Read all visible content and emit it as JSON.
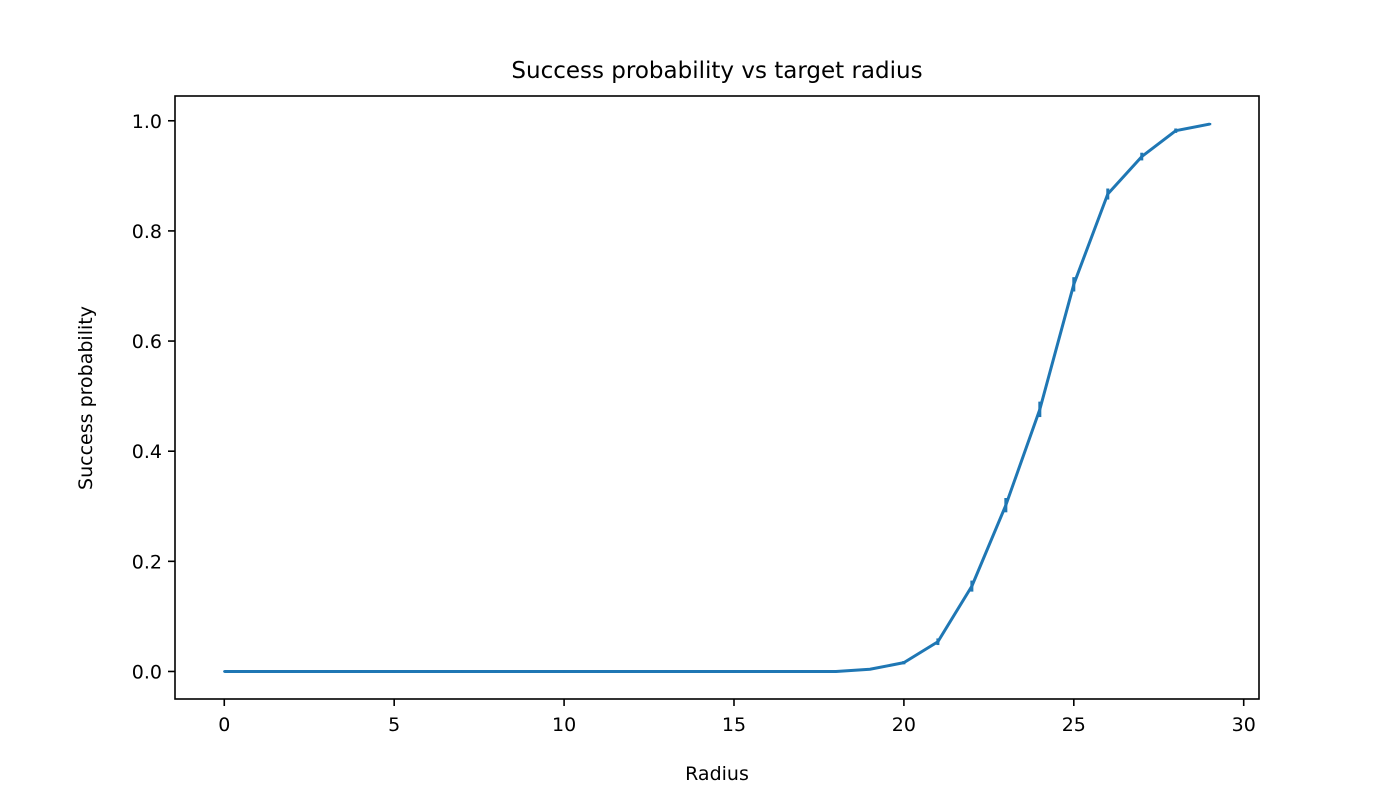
{
  "chart_data": {
    "type": "line",
    "title": "Success probability vs target radius",
    "xlabel": "Radius",
    "ylabel": "Success probability",
    "xlim": [
      -1.45,
      30.45
    ],
    "ylim": [
      -0.05,
      1.045
    ],
    "xticks": [
      0,
      5,
      10,
      15,
      20,
      25,
      30
    ],
    "xtick_labels": [
      "0",
      "5",
      "10",
      "15",
      "20",
      "25",
      "30"
    ],
    "yticks": [
      0.0,
      0.2,
      0.4,
      0.6,
      0.8,
      1.0
    ],
    "ytick_labels": [
      "0.0",
      "0.2",
      "0.4",
      "0.6",
      "0.8",
      "1.0"
    ],
    "grid": false,
    "series": [
      {
        "color": "#1f77b4",
        "x": [
          0,
          1,
          2,
          3,
          4,
          5,
          6,
          7,
          8,
          9,
          10,
          11,
          12,
          13,
          14,
          15,
          16,
          17,
          18,
          19,
          20,
          21,
          22,
          23,
          24,
          25,
          26,
          27,
          28,
          29
        ],
        "y": [
          0,
          0,
          0,
          0,
          0,
          0,
          0,
          0,
          0,
          0,
          0,
          0,
          0,
          0,
          0,
          0,
          0,
          0,
          0,
          0.004,
          0.016,
          0.054,
          0.155,
          0.302,
          0.476,
          0.703,
          0.867,
          0.935,
          0.982,
          0.994
        ],
        "yerr": [
          0,
          0,
          0,
          0,
          0,
          0,
          0,
          0,
          0,
          0,
          0,
          0,
          0,
          0,
          0,
          0,
          0,
          0,
          0,
          0.002,
          0.003,
          0.006,
          0.01,
          0.013,
          0.014,
          0.013,
          0.01,
          0.007,
          0.004,
          0.002
        ]
      }
    ]
  }
}
